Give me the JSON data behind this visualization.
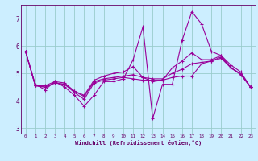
{
  "xlabel": "Windchill (Refroidissement éolien,°C)",
  "bg_color": "#cceeff",
  "grid_color": "#99cccc",
  "line_color": "#990099",
  "axis_color": "#660066",
  "xlim": [
    -0.5,
    23.5
  ],
  "ylim": [
    2.8,
    7.5
  ],
  "xticks": [
    0,
    1,
    2,
    3,
    4,
    5,
    6,
    7,
    8,
    9,
    10,
    11,
    12,
    13,
    14,
    15,
    16,
    17,
    18,
    19,
    20,
    21,
    22,
    23
  ],
  "yticks": [
    3,
    4,
    5,
    6,
    7
  ],
  "series": [
    [
      5.8,
      4.6,
      4.4,
      4.7,
      4.5,
      4.2,
      3.8,
      4.2,
      4.7,
      4.7,
      4.8,
      5.5,
      6.7,
      3.35,
      4.6,
      4.6,
      6.2,
      7.25,
      6.8,
      5.8,
      5.65,
      5.3,
      5.05,
      4.5
    ],
    [
      5.8,
      4.55,
      4.5,
      4.65,
      4.6,
      4.3,
      4.05,
      4.65,
      4.75,
      4.8,
      4.85,
      4.8,
      4.75,
      4.75,
      4.75,
      4.85,
      4.9,
      4.9,
      5.35,
      5.45,
      5.55,
      5.2,
      4.95,
      4.5
    ],
    [
      5.8,
      4.55,
      4.5,
      4.65,
      4.6,
      4.35,
      4.15,
      4.7,
      4.8,
      4.85,
      4.9,
      4.95,
      4.85,
      4.8,
      4.8,
      5.0,
      5.15,
      5.35,
      5.4,
      5.45,
      5.6,
      5.2,
      4.98,
      4.5
    ],
    [
      5.8,
      4.55,
      4.55,
      4.7,
      4.65,
      4.35,
      4.2,
      4.75,
      4.9,
      5.0,
      5.05,
      5.25,
      4.85,
      4.7,
      4.75,
      5.2,
      5.45,
      5.75,
      5.5,
      5.5,
      5.65,
      5.2,
      4.98,
      4.5
    ]
  ]
}
